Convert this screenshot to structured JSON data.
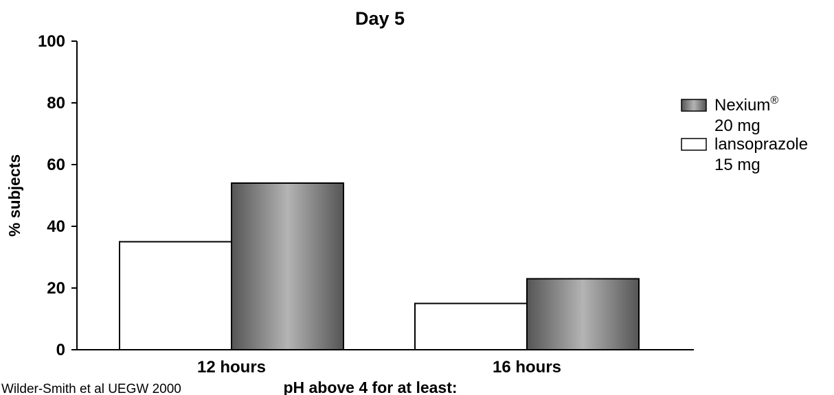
{
  "chart_data": {
    "type": "bar",
    "title": "Day 5",
    "xlabel": "pH above 4 for at least:",
    "ylabel": "% subjects",
    "ylim": [
      0,
      100
    ],
    "yticks": [
      0,
      20,
      40,
      60,
      80,
      100
    ],
    "categories": [
      "12 hours",
      "16 hours"
    ],
    "series": [
      {
        "name": "lansoprazole 15 mg",
        "legend_lines": [
          "lansoprazole",
          "15 mg"
        ],
        "values": [
          35,
          15
        ],
        "color": "#ffffff"
      },
      {
        "name": "Nexium® 20 mg",
        "legend_lines": [
          "Nexium",
          "20 mg"
        ],
        "legend_superscript": "®",
        "values": [
          54,
          23
        ],
        "color": "#9a9a9a"
      }
    ],
    "legend_position": "right",
    "grid": false
  },
  "source": "Wilder-Smith et al UEGW 2000"
}
